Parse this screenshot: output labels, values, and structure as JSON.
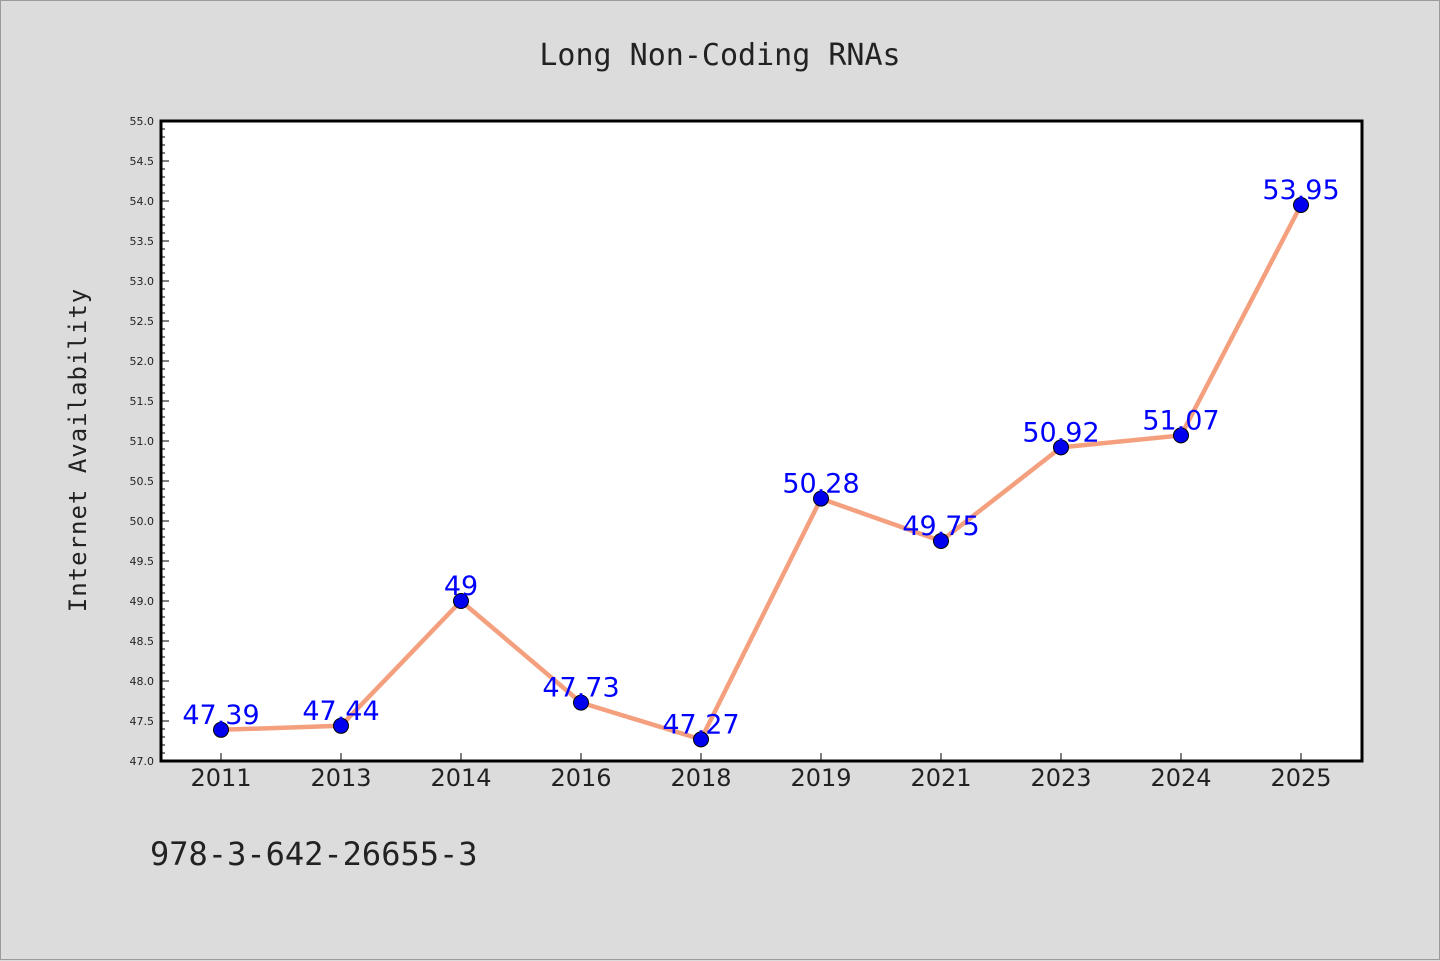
{
  "chart_data": {
    "type": "line",
    "title": "Long Non-Coding RNAs",
    "xlabel": "",
    "ylabel": "Internet Availability",
    "categories": [
      "2011",
      "2013",
      "2014",
      "2016",
      "2018",
      "2019",
      "2021",
      "2023",
      "2024",
      "2025"
    ],
    "series": [
      {
        "values": [
          47.39,
          47.44,
          49,
          47.73,
          47.27,
          50.28,
          49.75,
          50.92,
          51.07,
          53.95
        ],
        "labels": [
          "47.39",
          "47.44",
          "49",
          "47.73",
          "47.27",
          "50.28",
          "49.75",
          "50.92",
          "51.07",
          "53.95"
        ],
        "line_color": "#f4a07e",
        "marker_color": "#0000ee",
        "label_color": "#0000ff"
      }
    ],
    "ylim": [
      47.0,
      55.0
    ],
    "yticks": [
      "47.0",
      "47.5",
      "48.0",
      "48.5",
      "49.0",
      "49.5",
      "50.0",
      "50.5",
      "51.0",
      "51.5",
      "52.0",
      "52.5",
      "53.0",
      "53.5",
      "54.0",
      "54.5",
      "55.0"
    ],
    "grid": false,
    "legend": "none"
  },
  "footer": {
    "isbn": "978-3-642-26655-3"
  }
}
